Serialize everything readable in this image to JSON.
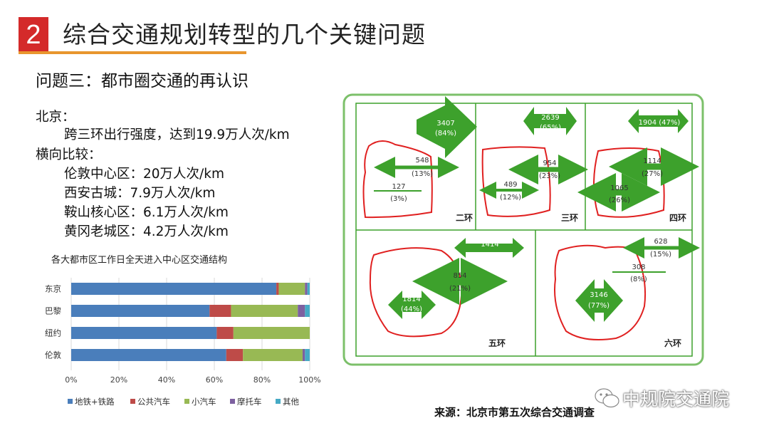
{
  "header": {
    "number": "2",
    "title": "综合交通规划转型的几个关键问题"
  },
  "subtitle": "问题三：都市圈交通的再认识",
  "beijing": {
    "label": "北京：",
    "detail": "跨三环出行强度，达到19.9万人次/km",
    "compare_label": "横向比较：",
    "items": [
      "伦敦中心区：20万人次/km",
      "西安古城：7.9万人次/km",
      "鞍山核心区：6.1万人次/km",
      "黄冈老城区：4.2万人次/km"
    ]
  },
  "chart_data": {
    "type": "bar",
    "stacked": true,
    "orientation": "horizontal",
    "title": "各大都市区工作日全天进入中心区交通结构",
    "categories": [
      "东京",
      "巴黎",
      "纽约",
      "伦敦"
    ],
    "series": [
      {
        "name": "地铁+铁路",
        "color": "#4a7ebb",
        "values": [
          86,
          58,
          61,
          65
        ]
      },
      {
        "name": "公共汽车",
        "color": "#be4b48",
        "values": [
          1,
          9,
          7,
          7
        ]
      },
      {
        "name": "小汽车",
        "color": "#98b954",
        "values": [
          11,
          28,
          32,
          25
        ]
      },
      {
        "name": "摩托车",
        "color": "#7d60a0",
        "values": [
          1,
          3,
          0,
          1
        ]
      },
      {
        "name": "其他",
        "color": "#46aac5",
        "values": [
          1,
          2,
          0,
          2
        ]
      }
    ],
    "xlim": [
      0,
      100
    ],
    "x_ticks": [
      "0%",
      "20%",
      "40%",
      "60%",
      "80%",
      "100%"
    ],
    "legend": "bottom"
  },
  "map": {
    "panels": [
      {
        "ring": "二环",
        "labels": [
          {
            "text": "3407",
            "pct": "(84%)"
          },
          {
            "text": "548",
            "pct": "(13%)"
          },
          {
            "text": "127",
            "pct": "(3%)"
          }
        ]
      },
      {
        "ring": "三环",
        "labels": [
          {
            "text": "2639",
            "pct": "(65%)"
          },
          {
            "text": "954",
            "pct": "(23%)"
          },
          {
            "text": "489",
            "pct": "(12%)"
          }
        ]
      },
      {
        "ring": "四环",
        "labels": [
          {
            "text": "1904 (47%)",
            "pct": ""
          },
          {
            "text": "1114",
            "pct": "(27%)"
          },
          {
            "text": "1065",
            "pct": "(26%)"
          }
        ]
      },
      {
        "ring": "五环",
        "labels": [
          {
            "text": "1414",
            "pct": "(35%)"
          },
          {
            "text": "854",
            "pct": "(21%)"
          },
          {
            "text": "1814",
            "pct": "(44%)"
          }
        ]
      },
      {
        "ring": "六环",
        "labels": [
          {
            "text": "628",
            "pct": "(15%)"
          },
          {
            "text": "308",
            "pct": "(8%)"
          },
          {
            "text": "3146",
            "pct": "(77%)"
          }
        ]
      }
    ]
  },
  "source": "来源：北京市第五次综合交通调查",
  "watermark": "中规院交通院",
  "colors": {
    "accent_red": "#d42a2a",
    "accent_orange": "#e8962e",
    "map_green": "#3da12c",
    "ring_red": "#e02020",
    "frame_green": "#7cc06a"
  }
}
